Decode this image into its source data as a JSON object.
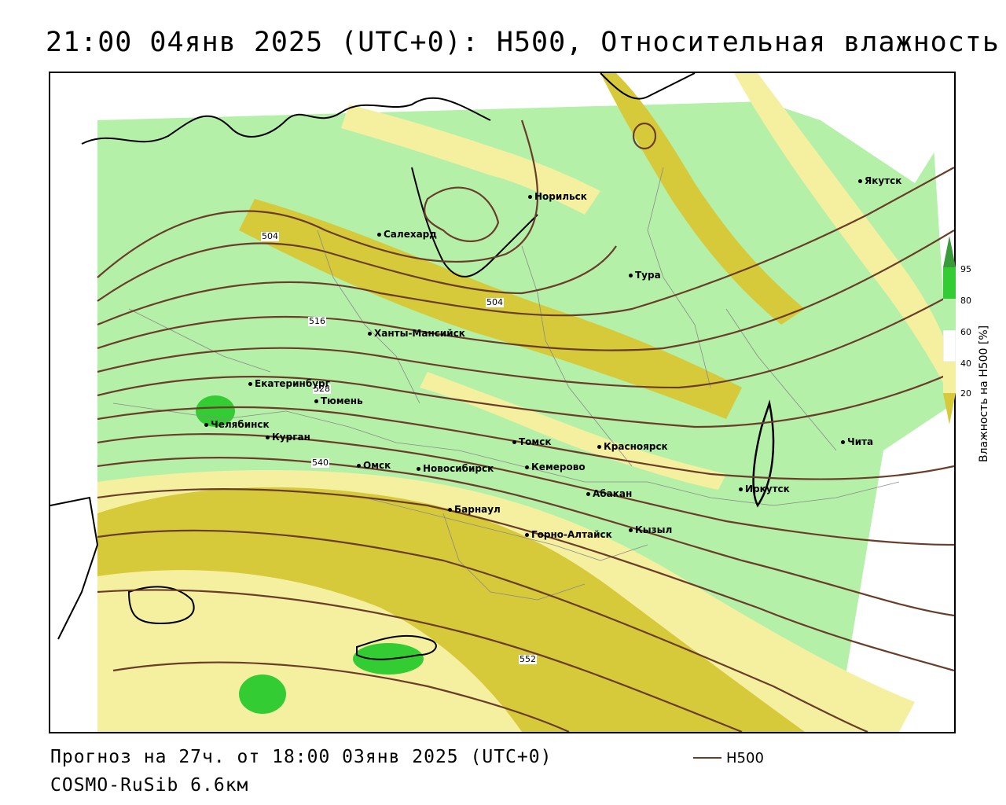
{
  "title": "21:00 04янв 2025 (UTC+0): H500, Относительная влажность",
  "footer": {
    "forecast": "Прогноз на 27ч. от 18:00 03янв 2025 (UTC+0)",
    "model": "COSMO-RuSib 6.6км"
  },
  "legend": {
    "h500_label": "H500",
    "line_color": "#6a3d2a"
  },
  "colorbar": {
    "title": "Влажность на H500 [%]",
    "ticks": [
      "95",
      "80",
      "60",
      "40",
      "20"
    ],
    "colors": [
      "#3a9b3a",
      "#33cc33",
      "#b4f0a8",
      "#ffffff",
      "#f5f0a0",
      "#d6c93a"
    ]
  },
  "cities": [
    {
      "name": "Норильск"
    },
    {
      "name": "Якутск"
    },
    {
      "name": "Салехард"
    },
    {
      "name": "Тура"
    },
    {
      "name": "Ханты-Мансийск"
    },
    {
      "name": "Екатеринбург"
    },
    {
      "name": "Тюмень"
    },
    {
      "name": "Челябинск"
    },
    {
      "name": "Курган"
    },
    {
      "name": "Омск"
    },
    {
      "name": "Новосибирск"
    },
    {
      "name": "Томск"
    },
    {
      "name": "Кемерово"
    },
    {
      "name": "Красноярск"
    },
    {
      "name": "Абакан"
    },
    {
      "name": "Барнаул"
    },
    {
      "name": "Горно-Алтайск"
    },
    {
      "name": "Кызыл"
    },
    {
      "name": "Иркутск"
    },
    {
      "name": "Чита"
    }
  ],
  "contour_labels": [
    "504",
    "504",
    "516",
    "528",
    "540",
    "552"
  ]
}
